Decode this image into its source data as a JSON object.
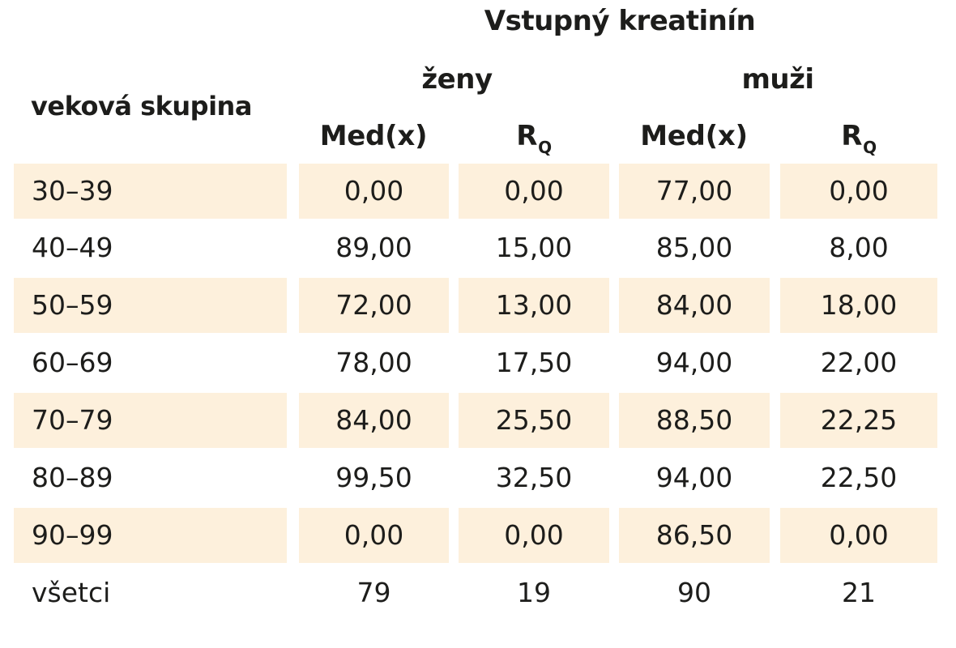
{
  "table": {
    "title": "Vstupný kreatinín",
    "row_header": "veková skupina",
    "groups": [
      "ženy",
      "muži"
    ],
    "columns": [
      {
        "main": "Med(x)",
        "sub": ""
      },
      {
        "main": "R",
        "sub": "Q"
      },
      {
        "main": "Med(x)",
        "sub": ""
      },
      {
        "main": "R",
        "sub": "Q"
      }
    ],
    "shade_color": "#fdf0dc",
    "rows": [
      {
        "label": "30–39",
        "values": [
          "0,00",
          "0,00",
          "77,00",
          "0,00"
        ],
        "shaded": true
      },
      {
        "label": "40–49",
        "values": [
          "89,00",
          "15,00",
          "85,00",
          "8,00"
        ],
        "shaded": false
      },
      {
        "label": "50–59",
        "values": [
          "72,00",
          "13,00",
          "84,00",
          "18,00"
        ],
        "shaded": true
      },
      {
        "label": "60–69",
        "values": [
          "78,00",
          "17,50",
          "94,00",
          "22,00"
        ],
        "shaded": false
      },
      {
        "label": "70–79",
        "values": [
          "84,00",
          "25,50",
          "88,50",
          "22,25"
        ],
        "shaded": true
      },
      {
        "label": "80–89",
        "values": [
          "99,50",
          "32,50",
          "94,00",
          "22,50"
        ],
        "shaded": false
      },
      {
        "label": "90–99",
        "values": [
          "0,00",
          "0,00",
          "86,50",
          "0,00"
        ],
        "shaded": true
      },
      {
        "label": "všetci",
        "values": [
          "79",
          "19",
          "90",
          "21"
        ],
        "shaded": false
      }
    ]
  }
}
